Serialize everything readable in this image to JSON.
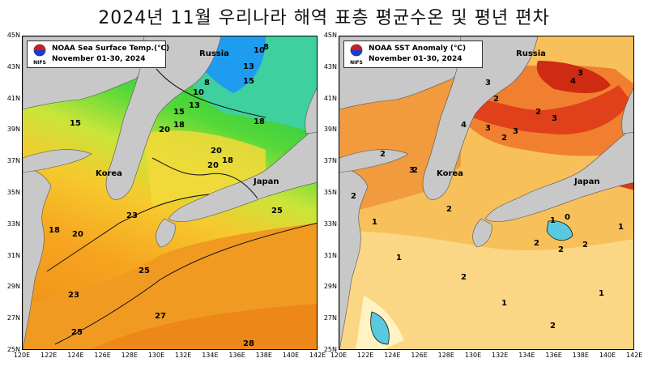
{
  "title": "2024년 11월 우리나라 해역 표층 평균수온 및 평년 편차",
  "left_map": {
    "legend_title": "NOAA Sea Surface Temp.(℃)",
    "legend_period": "November 01-30, 2024",
    "org": "NIFS",
    "places": {
      "russia": "Russia",
      "korea": "Korea",
      "japan": "Japan"
    },
    "contour_labels": [
      "10",
      "8",
      "13",
      "15",
      "10",
      "8",
      "13",
      "15",
      "15",
      "18",
      "20",
      "18",
      "20",
      "18",
      "20",
      "23",
      "25",
      "18",
      "20",
      "23",
      "25",
      "27",
      "25",
      "28"
    ]
  },
  "right_map": {
    "legend_title": "NOAA SST Anomaly (℃)",
    "legend_period": "November 01-30, 2024",
    "org": "NIFS",
    "places": {
      "russia": "Russia",
      "korea": "Korea",
      "japan": "Japan"
    },
    "contour_labels": [
      "3",
      "2",
      "4",
      "3",
      "2",
      "3",
      "2",
      "4",
      "3",
      "3",
      "2",
      "2",
      "3",
      "2",
      "1",
      "2",
      "1",
      "2",
      "1",
      "0",
      "2",
      "1",
      "2",
      "2",
      "1",
      "2",
      "1"
    ]
  },
  "axes": {
    "y_ticks": [
      "45N",
      "43N",
      "41N",
      "39N",
      "37N",
      "35N",
      "33N",
      "31N",
      "29N",
      "27N",
      "25N"
    ],
    "x_ticks": [
      "120E",
      "122E",
      "124E",
      "126E",
      "128E",
      "130E",
      "132E",
      "134E",
      "136E",
      "138E",
      "140E",
      "142E"
    ]
  },
  "colors": {
    "land": "#c8c8c8",
    "sst_warm": "#f39a1e",
    "sst_mid": "#f5d33a",
    "sst_cool": "#3fd43a",
    "sst_cold": "#1e8ff0",
    "anom_high": "#d81f0f",
    "anom_mid": "#f2a13b",
    "anom_low": "#fff6c8",
    "anom_neg": "#59c9e0"
  }
}
